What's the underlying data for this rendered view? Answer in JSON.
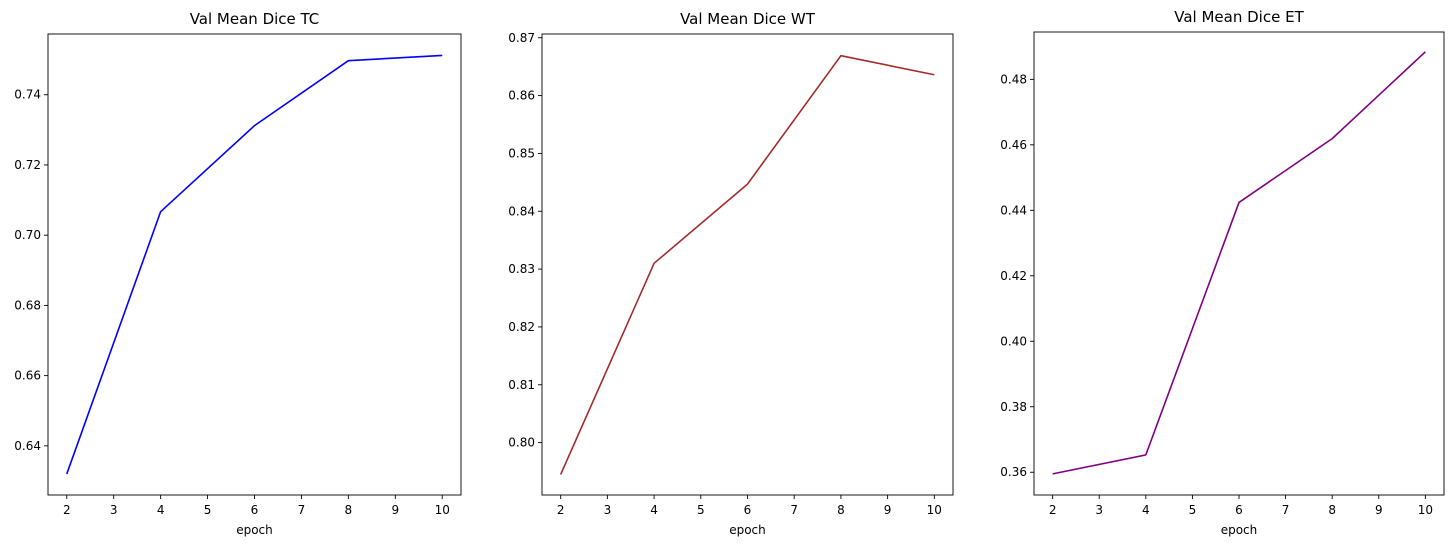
{
  "chart_data": [
    {
      "type": "line",
      "title": "Val Mean Dice TC",
      "xlabel": "epoch",
      "ylabel": "",
      "x": [
        2,
        4,
        6,
        8,
        10
      ],
      "series": [
        {
          "values": [
            0.632,
            0.7067,
            0.7312,
            0.7497,
            0.7512
          ],
          "color": "#0000ff"
        }
      ],
      "xticks": [
        2,
        3,
        4,
        5,
        6,
        7,
        8,
        9,
        10
      ],
      "xtick_labels": [
        "2",
        "3",
        "4",
        "5",
        "6",
        "7",
        "8",
        "9",
        "10"
      ],
      "yticks": [
        0.64,
        0.66,
        0.68,
        0.7,
        0.72,
        0.74
      ],
      "ytick_labels": [
        "0.64",
        "0.66",
        "0.68",
        "0.70",
        "0.72",
        "0.74"
      ],
      "xlim": [
        1.6,
        10.4
      ],
      "ylim": [
        0.626,
        0.7573
      ],
      "grid": false
    },
    {
      "type": "line",
      "title": "Val Mean Dice WT",
      "xlabel": "epoch",
      "ylabel": "",
      "x": [
        2,
        4,
        6,
        8,
        10
      ],
      "series": [
        {
          "values": [
            0.7945,
            0.831,
            0.8447,
            0.8669,
            0.8636
          ],
          "color": "#a52a2a"
        }
      ],
      "xticks": [
        2,
        3,
        4,
        5,
        6,
        7,
        8,
        9,
        10
      ],
      "xtick_labels": [
        "2",
        "3",
        "4",
        "5",
        "6",
        "7",
        "8",
        "9",
        "10"
      ],
      "yticks": [
        0.8,
        0.81,
        0.82,
        0.83,
        0.84,
        0.85,
        0.86,
        0.87
      ],
      "ytick_labels": [
        "0.80",
        "0.81",
        "0.82",
        "0.83",
        "0.84",
        "0.85",
        "0.86",
        "0.87"
      ],
      "xlim": [
        1.6,
        10.4
      ],
      "ylim": [
        0.79094,
        0.87065
      ],
      "grid": false
    },
    {
      "type": "line",
      "title": "Val Mean Dice ET",
      "xlabel": "epoch",
      "ylabel": "",
      "x": [
        2,
        4,
        6,
        8,
        10
      ],
      "series": [
        {
          "values": [
            0.3595,
            0.3653,
            0.4424,
            0.4619,
            0.4884
          ],
          "color": "#800080"
        }
      ],
      "xticks": [
        2,
        3,
        4,
        5,
        6,
        7,
        8,
        9,
        10
      ],
      "xtick_labels": [
        "2",
        "3",
        "4",
        "5",
        "6",
        "7",
        "8",
        "9",
        "10"
      ],
      "yticks": [
        0.36,
        0.38,
        0.4,
        0.42,
        0.44,
        0.46,
        0.48
      ],
      "ytick_labels": [
        "0.36",
        "0.38",
        "0.40",
        "0.42",
        "0.44",
        "0.46",
        "0.48"
      ],
      "xlim": [
        1.6,
        10.4
      ],
      "ylim": [
        0.35305,
        0.49446
      ],
      "grid": false
    }
  ]
}
